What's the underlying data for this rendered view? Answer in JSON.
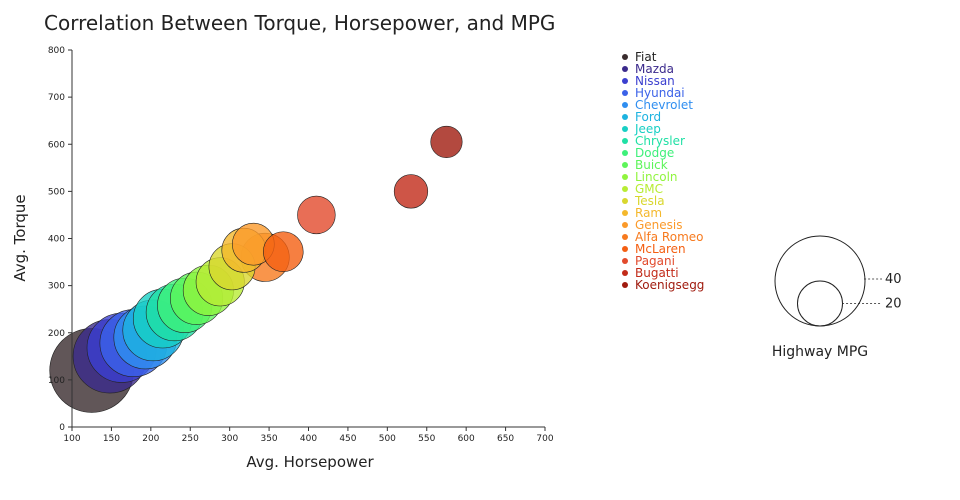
{
  "chart_data": {
    "type": "scatter",
    "title": "Correlation Between Torque, Horsepower, and MPG",
    "xlabel": "Avg. Horsepower",
    "ylabel": "Avg. Torque",
    "xlim": [
      100,
      700
    ],
    "ylim": [
      0,
      800
    ],
    "x_ticks": [
      100,
      150,
      200,
      250,
      300,
      350,
      400,
      450,
      500,
      550,
      600,
      650,
      700
    ],
    "y_ticks": [
      0,
      100,
      200,
      300,
      400,
      500,
      600,
      700,
      800
    ],
    "size_variable": "Highway MPG",
    "size_legend": {
      "title": "Highway MPG",
      "values": [
        40,
        20
      ]
    },
    "legend_placement": "right",
    "points": [
      {
        "name": "Fiat",
        "x": 125,
        "y": 120,
        "mpg": 40,
        "color": "#3a2c2e"
      },
      {
        "name": "Mazda",
        "x": 148,
        "y": 150,
        "mpg": 35,
        "color": "#3b2a8c"
      },
      {
        "name": "Nissan",
        "x": 163,
        "y": 168,
        "mpg": 33,
        "color": "#3b3fcf"
      },
      {
        "name": "Hyundai",
        "x": 178,
        "y": 178,
        "mpg": 32,
        "color": "#3b62e8"
      },
      {
        "name": "Chevrolet",
        "x": 193,
        "y": 190,
        "mpg": 30,
        "color": "#2f8ef0"
      },
      {
        "name": "Ford",
        "x": 203,
        "y": 205,
        "mpg": 29,
        "color": "#1db3e0"
      },
      {
        "name": "Jeep",
        "x": 215,
        "y": 230,
        "mpg": 28,
        "color": "#18cfc4"
      },
      {
        "name": "Chrysler",
        "x": 230,
        "y": 243,
        "mpg": 27,
        "color": "#20e0a5"
      },
      {
        "name": "Dodge",
        "x": 243,
        "y": 258,
        "mpg": 26,
        "color": "#3ef07a"
      },
      {
        "name": "Buick",
        "x": 258,
        "y": 273,
        "mpg": 25,
        "color": "#5ef55a"
      },
      {
        "name": "Lincoln",
        "x": 273,
        "y": 290,
        "mpg": 24,
        "color": "#90f43e"
      },
      {
        "name": "GMC",
        "x": 288,
        "y": 308,
        "mpg": 23,
        "color": "#b8ec34"
      },
      {
        "name": "Tesla",
        "x": 303,
        "y": 340,
        "mpg": 22,
        "color": "#d9d72e"
      },
      {
        "name": "Ram",
        "x": 318,
        "y": 375,
        "mpg": 21,
        "color": "#f4b82c"
      },
      {
        "name": "Genesis",
        "x": 330,
        "y": 388,
        "mpg": 20,
        "color": "#fb9a2a"
      },
      {
        "name": "Alfa Romeo",
        "x": 345,
        "y": 360,
        "mpg": 23,
        "color": "#f77a1e"
      },
      {
        "name": "McLaren",
        "x": 368,
        "y": 372,
        "mpg": 19,
        "color": "#f45f12"
      },
      {
        "name": "Pagani",
        "x": 410,
        "y": 450,
        "mpg": 18,
        "color": "#e24a2c"
      },
      {
        "name": "Bugatti",
        "x": 530,
        "y": 500,
        "mpg": 16,
        "color": "#c22b19"
      },
      {
        "name": "Koenigsegg",
        "x": 575,
        "y": 605,
        "mpg": 15,
        "color": "#a01b0f"
      }
    ]
  }
}
